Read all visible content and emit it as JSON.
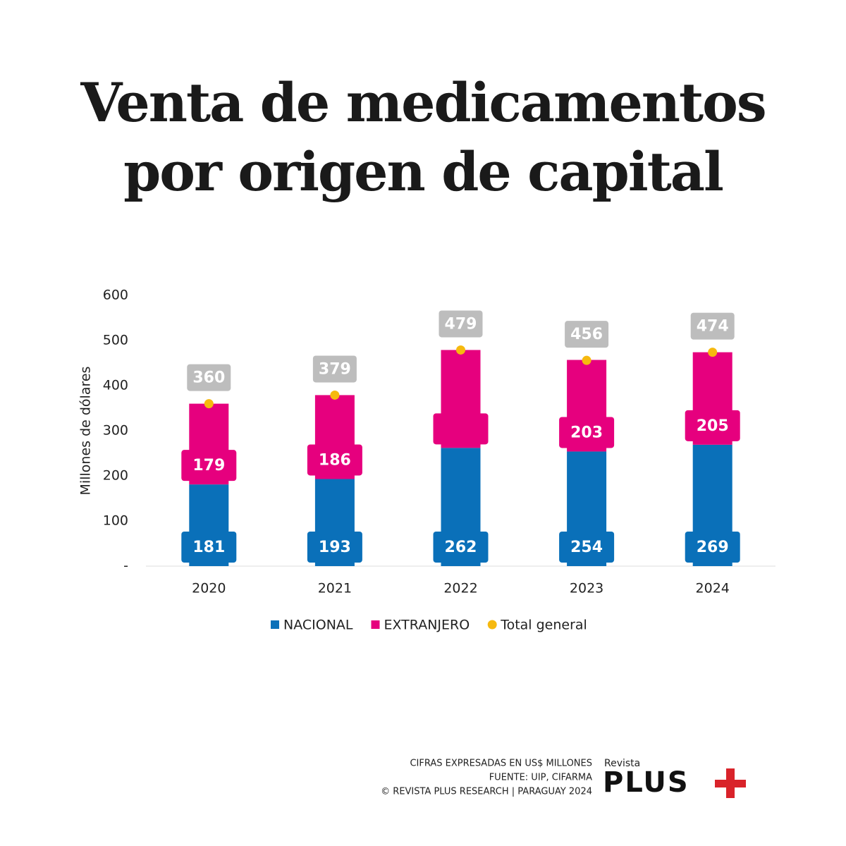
{
  "chart_data": {
    "type": "bar",
    "stacked": true,
    "title": [
      "Venta de medicamentos",
      "por origen de capital"
    ],
    "y_label": "Millones de dólares",
    "categories": [
      "2020",
      "2021",
      "2022",
      "2023",
      "2024"
    ],
    "series": [
      {
        "name": "NACIONAL",
        "color": "#0a70b9",
        "values": [
          181,
          193,
          262,
          254,
          269
        ]
      },
      {
        "name": "EXTRANJERO",
        "color": "#e6007e",
        "values": [
          179,
          186,
          217,
          203,
          205
        ],
        "value_labels": [
          "179",
          "186",
          null,
          "203",
          "205"
        ]
      },
      {
        "name": "Total general",
        "color": "#f6b90f",
        "type": "dot",
        "label_color": "#bdbdbd",
        "values": [
          360,
          379,
          479,
          456,
          474
        ]
      }
    ],
    "ylim": [
      0,
      600
    ],
    "yticks": [
      {
        "value": 0,
        "label": "-"
      },
      100,
      200,
      300,
      400,
      500,
      600
    ],
    "legend": "bottom",
    "notes": [
      "CIFRAS EXPRESADAS EN US$ MILLONES",
      "FUENTE: UIP, CIFARMA",
      "© REVISTA PLUS RESEARCH | PARAGUAY 2024"
    ],
    "logo": [
      "Revista",
      "PLUS"
    ]
  }
}
